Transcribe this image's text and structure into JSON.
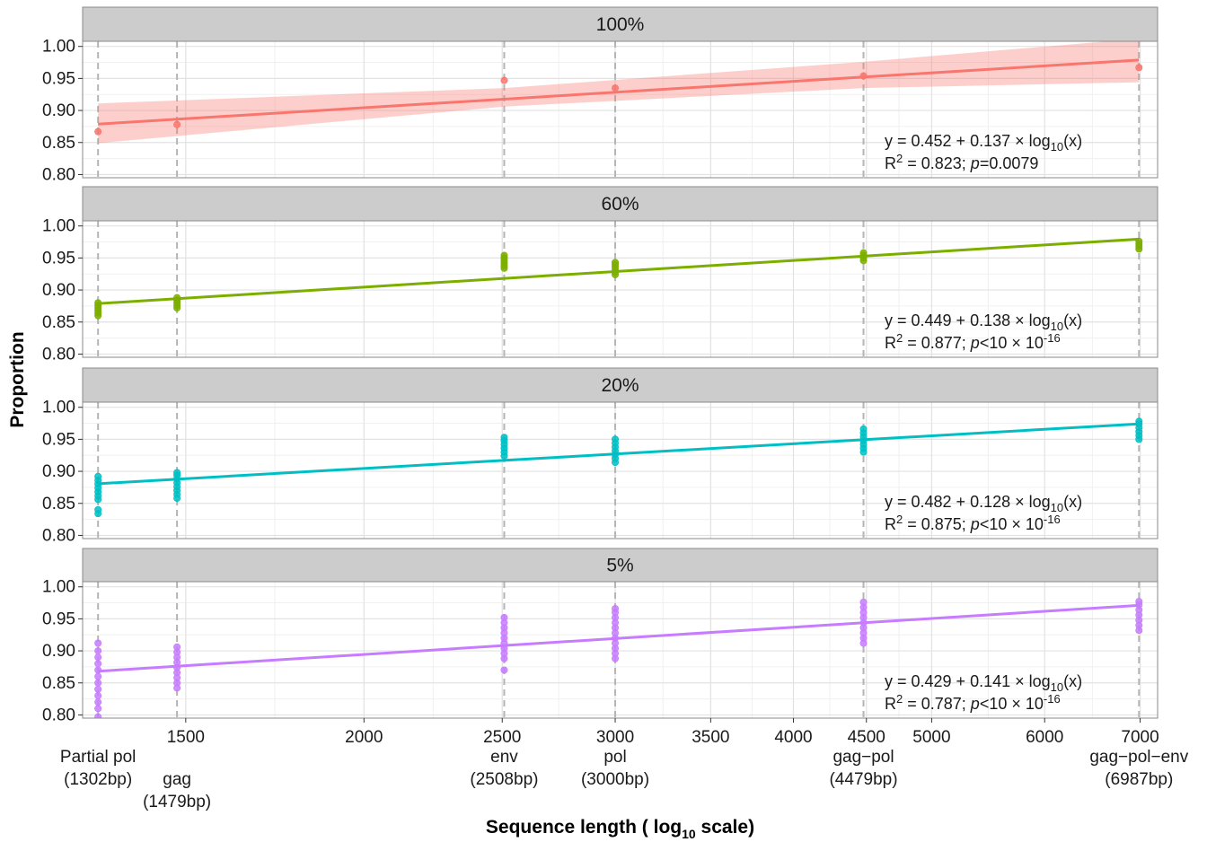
{
  "chart_data": {
    "type": "scatter",
    "xlabel": "Sequence length ( log",
    "xlabel_sub": "10",
    "xlabel_end": " scale)",
    "ylabel": "Proportion",
    "x_scale": "log10",
    "xlim": [
      1270,
      7200
    ],
    "ylim": [
      0.795,
      1.008
    ],
    "x_ticks": [
      1500,
      2000,
      2500,
      3000,
      3500,
      4000,
      4500,
      5000,
      6000,
      7000
    ],
    "x_tick_labels": [
      "1500",
      "2000",
      "2500",
      "3000",
      "3500",
      "4000",
      "4500",
      "5000",
      "6000",
      "7000"
    ],
    "y_ticks": [
      0.8,
      0.85,
      0.9,
      0.95,
      1.0
    ],
    "y_tick_labels": [
      "0.80",
      "0.85",
      "0.90",
      "0.95",
      "1.00"
    ],
    "grid": true,
    "reference_lines": [
      1302,
      1479,
      2508,
      3000,
      4479,
      6987
    ],
    "genes": [
      {
        "x": 1302,
        "name": "Partial pol",
        "len": "(1302bp)"
      },
      {
        "x": 1479,
        "name": "gag",
        "len": "(1479bp)"
      },
      {
        "x": 2508,
        "name": "env",
        "len": "(2508bp)"
      },
      {
        "x": 3000,
        "name": "pol",
        "len": "(3000bp)"
      },
      {
        "x": 4479,
        "name": "gag−pol",
        "len": "(4479bp)"
      },
      {
        "x": 6987,
        "name": "gag−pol−env",
        "len": "(6987bp)"
      }
    ],
    "panels": [
      {
        "label": "100%",
        "color": "#F8766D",
        "band_color": "#F8766D",
        "fit": {
          "intercept": 0.452,
          "slope": 0.137
        },
        "ci": [
          [
            1302,
            0.849,
            0.911
          ],
          [
            2508,
            0.906,
            0.935
          ],
          [
            4479,
            0.935,
            0.976
          ],
          [
            6987,
            0.944,
            1.012
          ]
        ],
        "points": [
          [
            1302,
            0.867
          ],
          [
            1479,
            0.878
          ],
          [
            2508,
            0.947
          ],
          [
            3000,
            0.935
          ],
          [
            4479,
            0.954
          ],
          [
            6987,
            0.967
          ]
        ],
        "eq_prefix": "y = 0.452 + 0.137 × log",
        "eq_sub": "10",
        "eq_suffix": "(x)",
        "r2_prefix": "R",
        "r2_sup": "2",
        "r2_value": " = 0.823; ",
        "p_label": "p",
        "p_value": "=0.0079",
        "p_sup": ""
      },
      {
        "label": "60%",
        "color": "#7CAE00",
        "fit": {
          "intercept": 0.449,
          "slope": 0.138
        },
        "points": [
          [
            1302,
            0.86
          ],
          [
            1302,
            0.864
          ],
          [
            1302,
            0.868
          ],
          [
            1302,
            0.872
          ],
          [
            1302,
            0.876
          ],
          [
            1302,
            0.88
          ],
          [
            1479,
            0.872
          ],
          [
            1479,
            0.876
          ],
          [
            1479,
            0.88
          ],
          [
            1479,
            0.884
          ],
          [
            1479,
            0.888
          ],
          [
            2508,
            0.934
          ],
          [
            2508,
            0.938
          ],
          [
            2508,
            0.942
          ],
          [
            2508,
            0.946
          ],
          [
            2508,
            0.95
          ],
          [
            2508,
            0.954
          ],
          [
            3000,
            0.924
          ],
          [
            3000,
            0.928
          ],
          [
            3000,
            0.932
          ],
          [
            3000,
            0.936
          ],
          [
            3000,
            0.94
          ],
          [
            3000,
            0.943
          ],
          [
            4479,
            0.946
          ],
          [
            4479,
            0.95
          ],
          [
            4479,
            0.954
          ],
          [
            4479,
            0.958
          ],
          [
            6987,
            0.964
          ],
          [
            6987,
            0.968
          ],
          [
            6987,
            0.972
          ],
          [
            6987,
            0.976
          ]
        ],
        "eq_prefix": "y = 0.449 + 0.138 × log",
        "eq_sub": "10",
        "eq_suffix": "(x)",
        "r2_prefix": "R",
        "r2_sup": "2",
        "r2_value": " = 0.877; ",
        "p_label": "p",
        "p_value": "<10 × 10",
        "p_sup": "-16"
      },
      {
        "label": "20%",
        "color": "#00BFC4",
        "fit": {
          "intercept": 0.482,
          "slope": 0.128
        },
        "points": [
          [
            1302,
            0.834
          ],
          [
            1302,
            0.84
          ],
          [
            1302,
            0.856
          ],
          [
            1302,
            0.862
          ],
          [
            1302,
            0.868
          ],
          [
            1302,
            0.874
          ],
          [
            1302,
            0.88
          ],
          [
            1302,
            0.886
          ],
          [
            1302,
            0.892
          ],
          [
            1479,
            0.858
          ],
          [
            1479,
            0.864
          ],
          [
            1479,
            0.87
          ],
          [
            1479,
            0.876
          ],
          [
            1479,
            0.882
          ],
          [
            1479,
            0.888
          ],
          [
            1479,
            0.894
          ],
          [
            1479,
            0.898
          ],
          [
            2508,
            0.924
          ],
          [
            2508,
            0.93
          ],
          [
            2508,
            0.936
          ],
          [
            2508,
            0.942
          ],
          [
            2508,
            0.948
          ],
          [
            2508,
            0.953
          ],
          [
            3000,
            0.914
          ],
          [
            3000,
            0.92
          ],
          [
            3000,
            0.926
          ],
          [
            3000,
            0.932
          ],
          [
            3000,
            0.938
          ],
          [
            3000,
            0.944
          ],
          [
            3000,
            0.95
          ],
          [
            4479,
            0.93
          ],
          [
            4479,
            0.936
          ],
          [
            4479,
            0.942
          ],
          [
            4479,
            0.948
          ],
          [
            4479,
            0.954
          ],
          [
            4479,
            0.96
          ],
          [
            4479,
            0.966
          ],
          [
            6987,
            0.95
          ],
          [
            6987,
            0.956
          ],
          [
            6987,
            0.962
          ],
          [
            6987,
            0.968
          ],
          [
            6987,
            0.974
          ],
          [
            6987,
            0.978
          ]
        ],
        "eq_prefix": "y = 0.482 + 0.128 × log",
        "eq_sub": "10",
        "eq_suffix": "(x)",
        "r2_prefix": "R",
        "r2_sup": "2",
        "r2_value": " = 0.875; ",
        "p_label": "p",
        "p_value": "<10 × 10",
        "p_sup": "-16"
      },
      {
        "label": "5%",
        "color": "#C77CFF",
        "fit": {
          "intercept": 0.429,
          "slope": 0.141
        },
        "points": [
          [
            1302,
            0.797
          ],
          [
            1302,
            0.81
          ],
          [
            1302,
            0.82
          ],
          [
            1302,
            0.83
          ],
          [
            1302,
            0.84
          ],
          [
            1302,
            0.85
          ],
          [
            1302,
            0.86
          ],
          [
            1302,
            0.87
          ],
          [
            1302,
            0.88
          ],
          [
            1302,
            0.89
          ],
          [
            1302,
            0.9
          ],
          [
            1302,
            0.912
          ],
          [
            1479,
            0.842
          ],
          [
            1479,
            0.85
          ],
          [
            1479,
            0.858
          ],
          [
            1479,
            0.866
          ],
          [
            1479,
            0.874
          ],
          [
            1479,
            0.882
          ],
          [
            1479,
            0.89
          ],
          [
            1479,
            0.898
          ],
          [
            1479,
            0.906
          ],
          [
            2508,
            0.87
          ],
          [
            2508,
            0.888
          ],
          [
            2508,
            0.896
          ],
          [
            2508,
            0.904
          ],
          [
            2508,
            0.912
          ],
          [
            2508,
            0.92
          ],
          [
            2508,
            0.928
          ],
          [
            2508,
            0.936
          ],
          [
            2508,
            0.944
          ],
          [
            2508,
            0.952
          ],
          [
            3000,
            0.888
          ],
          [
            3000,
            0.896
          ],
          [
            3000,
            0.904
          ],
          [
            3000,
            0.912
          ],
          [
            3000,
            0.92
          ],
          [
            3000,
            0.928
          ],
          [
            3000,
            0.936
          ],
          [
            3000,
            0.944
          ],
          [
            3000,
            0.952
          ],
          [
            3000,
            0.96
          ],
          [
            3000,
            0.966
          ],
          [
            4479,
            0.912
          ],
          [
            4479,
            0.92
          ],
          [
            4479,
            0.928
          ],
          [
            4479,
            0.936
          ],
          [
            4479,
            0.944
          ],
          [
            4479,
            0.952
          ],
          [
            4479,
            0.96
          ],
          [
            4479,
            0.968
          ],
          [
            4479,
            0.976
          ],
          [
            6987,
            0.932
          ],
          [
            6987,
            0.94
          ],
          [
            6987,
            0.948
          ],
          [
            6987,
            0.956
          ],
          [
            6987,
            0.964
          ],
          [
            6987,
            0.972
          ],
          [
            6987,
            0.977
          ]
        ],
        "eq_prefix": "y = 0.429 + 0.141 × log",
        "eq_sub": "10",
        "eq_suffix": "(x)",
        "r2_prefix": "R",
        "r2_sup": "2",
        "r2_value": " = 0.787; ",
        "p_label": "p",
        "p_value": "<10 × 10",
        "p_sup": "-16"
      }
    ]
  }
}
